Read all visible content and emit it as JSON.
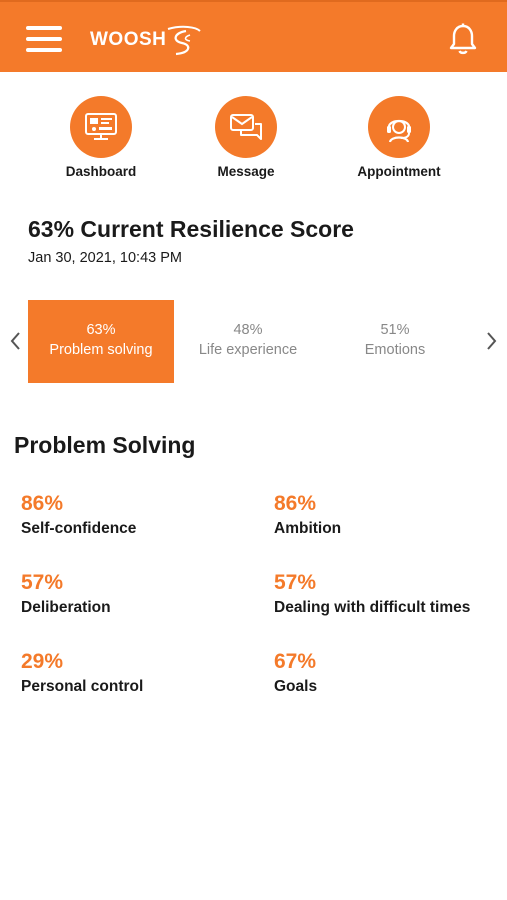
{
  "header": {
    "brand": "WOOSH",
    "menu_icon": "hamburger-menu-icon",
    "notification_icon": "bell-icon",
    "color": "#f47a2a"
  },
  "quick_actions": [
    {
      "label": "Dashboard",
      "icon": "dashboard-icon"
    },
    {
      "label": "Message",
      "icon": "message-icon"
    },
    {
      "label": "Appointment",
      "icon": "headset-icon"
    }
  ],
  "score": {
    "title": "63% Current Resilience Score",
    "date": "Jan 30, 2021, 10:43 PM"
  },
  "categories": [
    {
      "percent": "63%",
      "name": "Problem solving",
      "active": true
    },
    {
      "percent": "48%",
      "name": "Life experience",
      "active": false
    },
    {
      "percent": "51%",
      "name": "Emotions",
      "active": false
    }
  ],
  "section": {
    "title": "Problem Solving",
    "metrics": [
      {
        "value": "86%",
        "label": "Self-confidence"
      },
      {
        "value": "86%",
        "label": "Ambition"
      },
      {
        "value": "57%",
        "label": "Deliberation"
      },
      {
        "value": "57%",
        "label": "Dealing with difficult times"
      },
      {
        "value": "29%",
        "label": "Personal control"
      },
      {
        "value": "67%",
        "label": "Goals"
      }
    ]
  }
}
